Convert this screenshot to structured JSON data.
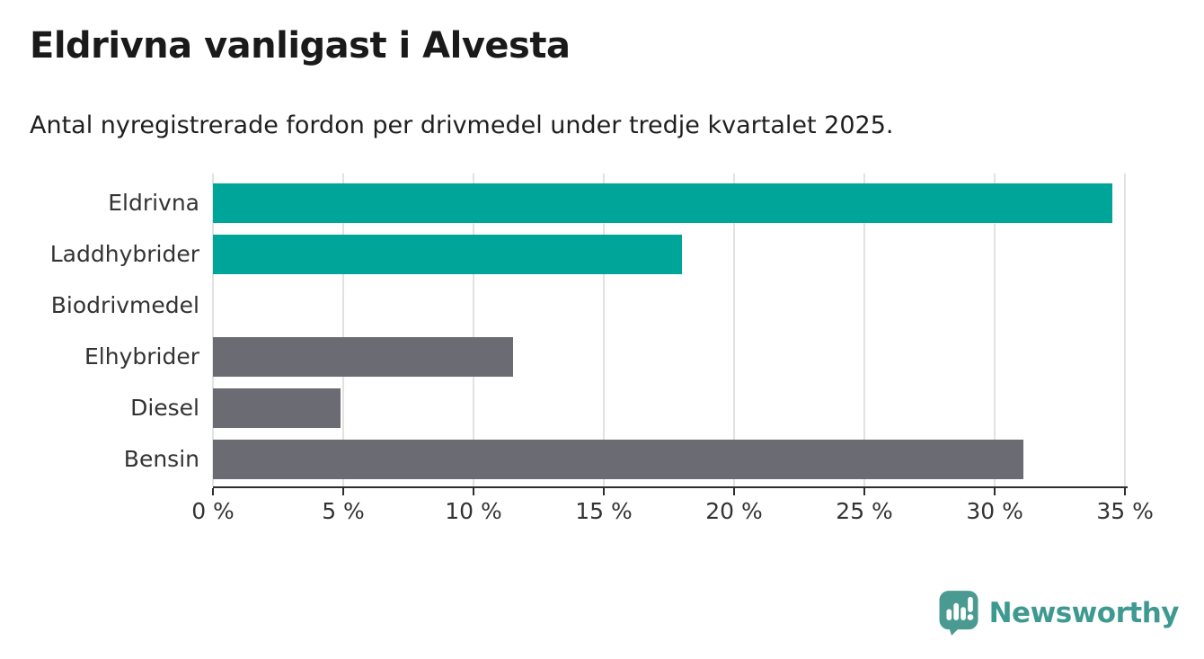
{
  "title": "Eldrivna vanligast i Alvesta",
  "subtitle": "Antal nyregistrerade fordon per drivmedel under tredje kvartalet 2025.",
  "chart_data": {
    "type": "bar",
    "orientation": "horizontal",
    "categories": [
      "Eldrivna",
      "Laddhybrider",
      "Biodrivmedel",
      "Elhybrider",
      "Diesel",
      "Bensin"
    ],
    "values": [
      34.5,
      18.0,
      0.0,
      11.5,
      4.9,
      31.1
    ],
    "unit": "%",
    "series_colors": [
      "#00a59a",
      "#00a59a",
      "#6b6b73",
      "#6b6b73",
      "#6b6b73",
      "#6b6b73"
    ],
    "title": "Eldrivna vanligast i Alvesta",
    "subtitle": "Antal nyregistrerade fordon per drivmedel under tredje kvartalet 2025.",
    "xlabel": "",
    "ylabel": "",
    "xlim": [
      0,
      35.1
    ],
    "x_ticks": [
      0,
      5,
      10,
      15,
      20,
      25,
      30,
      35
    ],
    "x_tick_labels": [
      "0 %",
      "5 %",
      "10 %",
      "15 %",
      "20 %",
      "25 %",
      "30 %",
      "35 %"
    ],
    "grid": true,
    "legend": false
  },
  "colors": {
    "accent_teal": "#00a59a",
    "neutral_gray": "#6b6b73",
    "axis": "#2e2e2e",
    "gridline": "#e2e2e2",
    "title_text": "#1a1a1a",
    "label_text": "#333333",
    "brand_teal": "#3e9a91"
  },
  "footer": {
    "brand": "Newsworthy",
    "logo_icon": "speech-bubble-bar-chart-icon"
  }
}
